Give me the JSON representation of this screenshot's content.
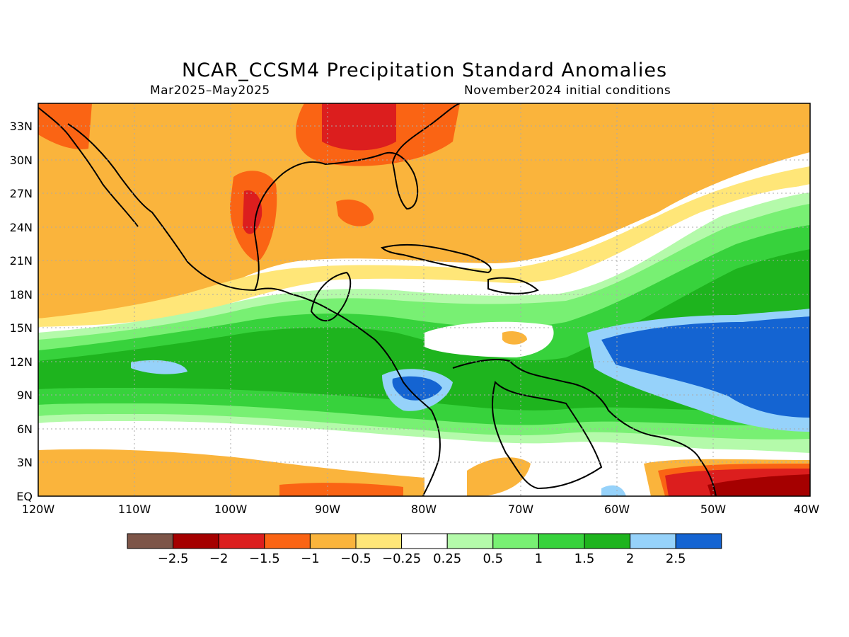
{
  "title": "NCAR_CCSM4 Precipitation Standard Anomalies",
  "subtitle_left": "Mar2025–May2025",
  "subtitle_right": "November2024 initial conditions",
  "map": {
    "lat_labels": [
      "EQ",
      "3N",
      "6N",
      "9N",
      "12N",
      "15N",
      "18N",
      "21N",
      "24N",
      "27N",
      "30N",
      "33N"
    ],
    "lon_labels": [
      "120W",
      "110W",
      "100W",
      "90W",
      "80W",
      "70W",
      "60W",
      "50W",
      "40W"
    ],
    "lat_range": [
      0,
      35
    ],
    "lon_range": [
      -120,
      -40
    ],
    "grid": "dotted"
  },
  "colorbar": {
    "labels": [
      "−2.5",
      "−2",
      "−1.5",
      "−1",
      "−0.5",
      "−0.25",
      "0.25",
      "0.5",
      "1",
      "1.5",
      "2",
      "2.5"
    ],
    "colors": [
      "#7d5548",
      "#a50000",
      "#dc1e1e",
      "#fa6414",
      "#fab43c",
      "#ffe678",
      "#ffffff",
      "#b4faaa",
      "#78f073",
      "#37d23c",
      "#1eb41e",
      "#96d2fa",
      "#1464d2"
    ]
  }
}
